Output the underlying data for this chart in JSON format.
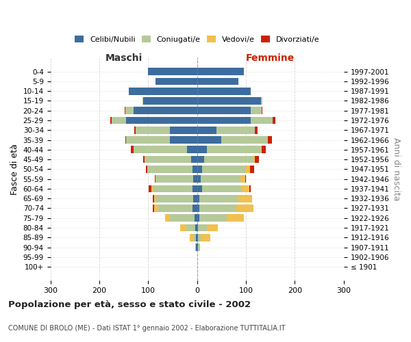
{
  "age_groups": [
    "100+",
    "95-99",
    "90-94",
    "85-89",
    "80-84",
    "75-79",
    "70-74",
    "65-69",
    "60-64",
    "55-59",
    "50-54",
    "45-49",
    "40-44",
    "35-39",
    "30-34",
    "25-29",
    "20-24",
    "15-19",
    "10-14",
    "5-9",
    "0-4"
  ],
  "birth_years": [
    "≤ 1901",
    "1902-1906",
    "1907-1911",
    "1912-1916",
    "1917-1921",
    "1922-1926",
    "1927-1931",
    "1932-1936",
    "1937-1941",
    "1942-1946",
    "1947-1951",
    "1952-1956",
    "1957-1961",
    "1962-1966",
    "1967-1971",
    "1972-1976",
    "1977-1981",
    "1982-1986",
    "1987-1991",
    "1992-1996",
    "1997-2001"
  ],
  "maschi": {
    "celibi": [
      0,
      0,
      2,
      2,
      4,
      5,
      10,
      8,
      10,
      8,
      10,
      12,
      20,
      55,
      55,
      145,
      130,
      110,
      140,
      85,
      100
    ],
    "coniugati": [
      0,
      0,
      2,
      5,
      18,
      50,
      70,
      75,
      80,
      75,
      90,
      95,
      110,
      90,
      70,
      30,
      15,
      2,
      0,
      0,
      0
    ],
    "vedovi": [
      0,
      0,
      0,
      8,
      12,
      10,
      8,
      5,
      4,
      2,
      2,
      1,
      0,
      0,
      0,
      0,
      2,
      0,
      0,
      0,
      0
    ],
    "divorziati": [
      0,
      0,
      0,
      0,
      0,
      0,
      2,
      2,
      5,
      2,
      2,
      2,
      5,
      2,
      3,
      3,
      1,
      0,
      0,
      0,
      0
    ]
  },
  "femmine": {
    "nubili": [
      0,
      0,
      2,
      2,
      2,
      5,
      5,
      5,
      10,
      8,
      10,
      15,
      20,
      50,
      40,
      110,
      110,
      130,
      110,
      85,
      95
    ],
    "coniugate": [
      0,
      0,
      2,
      5,
      18,
      55,
      75,
      80,
      82,
      80,
      90,
      100,
      110,
      95,
      78,
      45,
      20,
      3,
      0,
      0,
      0
    ],
    "vedove": [
      0,
      0,
      2,
      20,
      22,
      35,
      35,
      28,
      15,
      10,
      8,
      3,
      2,
      0,
      0,
      0,
      2,
      0,
      0,
      0,
      0
    ],
    "divorziate": [
      0,
      0,
      0,
      0,
      0,
      0,
      0,
      0,
      2,
      2,
      8,
      8,
      8,
      8,
      5,
      5,
      2,
      0,
      0,
      0,
      0
    ]
  },
  "colors": {
    "celibi": "#3d6d9e",
    "coniugati": "#b5c99a",
    "vedovi": "#f0c050",
    "divorziati": "#cc2200"
  },
  "title": "Popolazione per età, sesso e stato civile - 2002",
  "subtitle": "COMUNE DI BROLO (ME) - Dati ISTAT 1° gennaio 2002 - Elaborazione TUTTITALIA.IT",
  "xlabel_left": "Maschi",
  "xlabel_right": "Femmine",
  "ylabel_left": "Fasce di età",
  "ylabel_right": "Anni di nascita",
  "xlim": 300,
  "background_color": "#ffffff",
  "grid_color": "#cccccc"
}
